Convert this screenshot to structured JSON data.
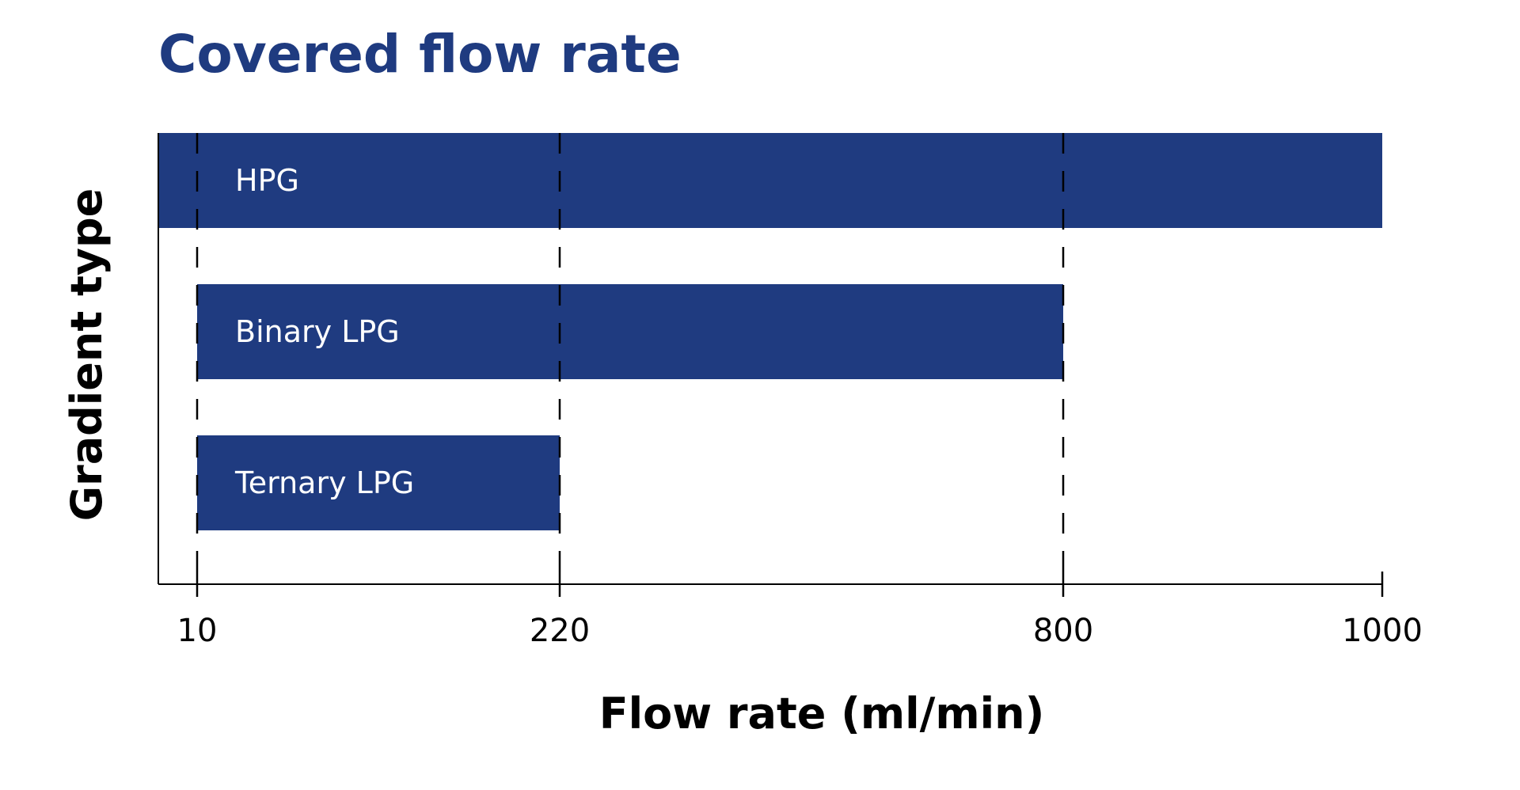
{
  "chart_data": {
    "type": "bar",
    "orientation": "horizontal",
    "title": "Covered flow rate",
    "xlabel": "Flow rate (ml/min)",
    "ylabel": "Gradient type",
    "categories": [
      "HPG",
      "Binary LPG",
      "Ternary LPG"
    ],
    "ranges": [
      {
        "label": "HPG",
        "min": 0,
        "max": 1000
      },
      {
        "label": "Binary LPG",
        "min": 10,
        "max": 800
      },
      {
        "label": "Ternary LPG",
        "min": 10,
        "max": 220
      }
    ],
    "x_ticks": [
      10,
      220,
      800,
      1000
    ],
    "x_tick_labels": [
      "10",
      "220",
      "800",
      "1000"
    ],
    "dashed_gridlines": [
      10,
      220,
      800
    ],
    "bar_color": "#1f3b80",
    "label_color": "#ffffff",
    "title_color": "#1f3b80",
    "grid": "dashed vertical at tick values",
    "legend": "none"
  }
}
